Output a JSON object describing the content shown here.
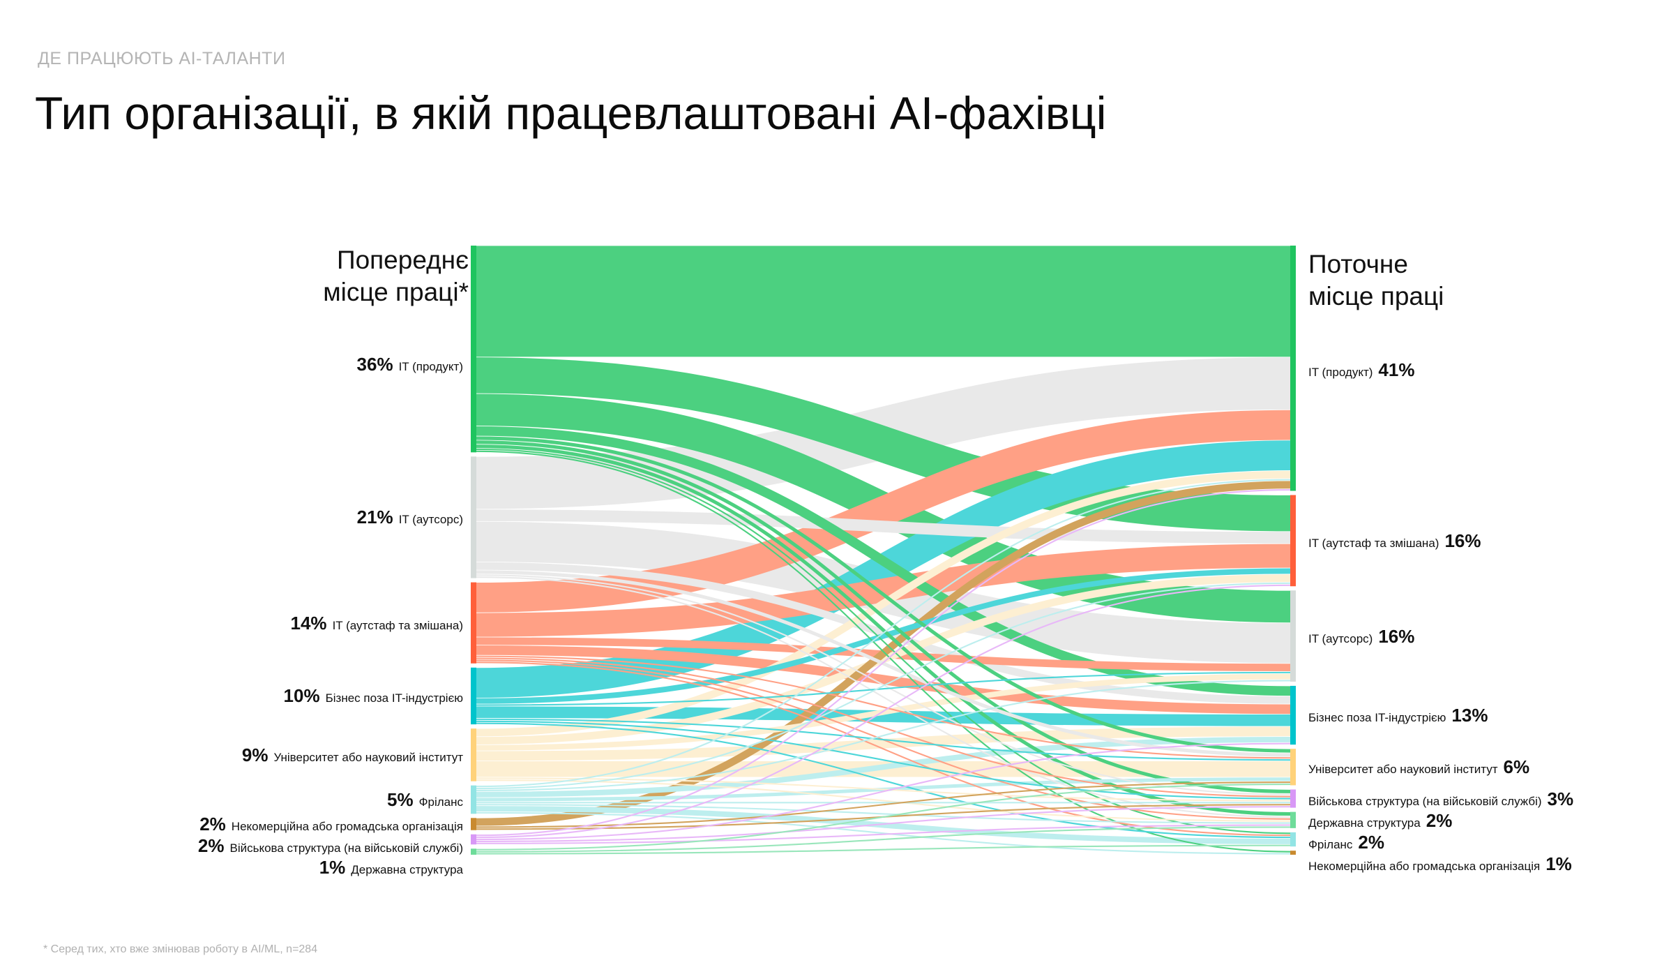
{
  "kicker": "ДЕ ПРАЦЮЮТЬ AI-ТАЛАНТИ",
  "title": "Тип організації, в якій працевлаштовані AI-фахівці",
  "footnote": "* Серед тих, хто вже змінював роботу в AI/ML, n=284",
  "chart_data": {
    "type": "sankey",
    "left_header": "Попереднє місце праці*",
    "right_header": "Поточне місце праці",
    "left_nodes": [
      {
        "label": "IT (продукт)",
        "pct": "36%",
        "color": "#1fc45f",
        "flow": "#4cd080"
      },
      {
        "label": "IT (аутсорс)",
        "pct": "21%",
        "color": "#d5dbd9",
        "flow": "#e9e9e9"
      },
      {
        "label": "IT (аутстаф та змішана)",
        "pct": "14%",
        "color": "#ff5f3a",
        "flow": "#ffa085"
      },
      {
        "label": "Бізнес поза IT-індустрією",
        "pct": "10%",
        "color": "#00c4cc",
        "flow": "#4dd6d9"
      },
      {
        "label": "Університет або науковий інститут",
        "pct": "9%",
        "color": "#ffd27a",
        "flow": "#fdefd2"
      },
      {
        "label": "Фріланс",
        "pct": "5%",
        "color": "#92e4e4",
        "flow": "#bdeeee"
      },
      {
        "label": "Некомерційна або громадська організація",
        "pct": "2%",
        "color": "#c98a2f",
        "flow": "#d2a35d"
      },
      {
        "label": "Військова структура (на військовій службі)",
        "pct": "2%",
        "color": "#d898f6",
        "flow": "#e8b8f8"
      },
      {
        "label": "Державна структура",
        "pct": "1%",
        "color": "#6edc9a",
        "flow": "#99e6bb"
      }
    ],
    "right_nodes": [
      {
        "label": "IT (продукт)",
        "pct": "41%",
        "color": "#1fc45f"
      },
      {
        "label": "IT (аутстаф та змішана)",
        "pct": "16%",
        "color": "#ff5f3a"
      },
      {
        "label": "IT (аутсорс)",
        "pct": "16%",
        "color": "#d5dbd9"
      },
      {
        "label": "Бізнес поза IT-індустрією",
        "pct": "13%",
        "color": "#00c4cc"
      },
      {
        "label": "Університет або науковий інститут",
        "pct": "6%",
        "color": "#ffd27a"
      },
      {
        "label": "Військова структура (на військовій службі)",
        "pct": "3%",
        "color": "#d898f6"
      },
      {
        "label": "Державна структура",
        "pct": "2%",
        "color": "#6edc9a"
      },
      {
        "label": "Фріланс",
        "pct": "2%",
        "color": "#92e4e4"
      },
      {
        "label": "Некомерційна або громадська організація",
        "pct": "1%",
        "color": "#c98a2f"
      }
    ],
    "flows_matrix_note": "rows = left nodes, cols = right nodes, approximate respondent counts",
    "flows": [
      [
        55,
        18,
        16,
        5,
        2,
        2,
        2,
        1,
        1
      ],
      [
        26,
        6,
        20,
        4,
        2,
        1,
        1,
        0,
        0
      ],
      [
        15,
        12,
        4,
        5,
        1,
        1,
        1,
        1,
        0
      ],
      [
        15,
        3,
        1,
        6,
        1,
        1,
        0,
        1,
        0
      ],
      [
        4,
        4,
        3,
        5,
        8,
        1,
        1,
        0,
        0
      ],
      [
        1,
        1,
        1,
        3,
        2,
        1,
        1,
        3,
        1
      ],
      [
        4,
        0,
        0,
        0,
        1,
        1,
        0,
        0,
        0
      ],
      [
        1,
        1,
        0,
        1,
        0,
        1,
        1,
        0,
        0
      ],
      [
        0,
        0,
        0,
        0,
        1,
        0,
        1,
        1,
        0
      ]
    ]
  }
}
